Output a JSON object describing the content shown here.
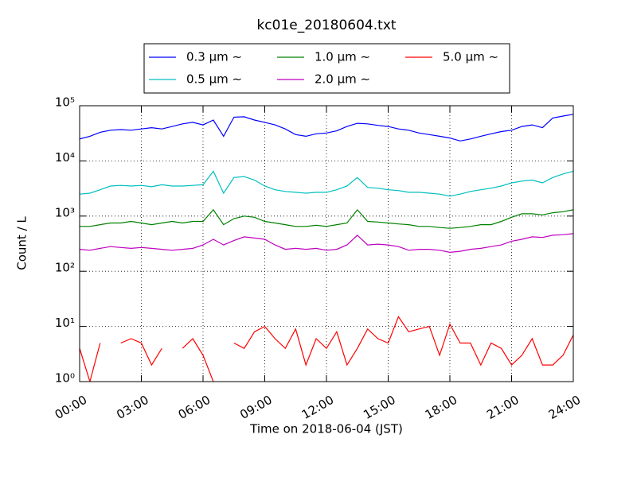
{
  "chart_data": {
    "type": "line",
    "title": "kc01e_20180604.txt",
    "xlabel": "Time on 2018-06-04 (JST)",
    "ylabel": "Count / L",
    "x": [
      0,
      0.5,
      1,
      1.5,
      2,
      2.5,
      3,
      3.5,
      4,
      4.5,
      5,
      5.5,
      6,
      6.5,
      7,
      7.5,
      8,
      8.5,
      9,
      9.5,
      10,
      10.5,
      11,
      11.5,
      12,
      12.5,
      13,
      13.5,
      14,
      14.5,
      15,
      15.5,
      16,
      16.5,
      17,
      17.5,
      18,
      18.5,
      19,
      19.5,
      20,
      20.5,
      21,
      21.5,
      22,
      22.5,
      23,
      23.5,
      24
    ],
    "xlim": [
      0,
      24
    ],
    "xticks": [
      {
        "value": 0,
        "label": "00:00"
      },
      {
        "value": 3,
        "label": "03:00"
      },
      {
        "value": 6,
        "label": "06:00"
      },
      {
        "value": 9,
        "label": "09:00"
      },
      {
        "value": 12,
        "label": "12:00"
      },
      {
        "value": 15,
        "label": "15:00"
      },
      {
        "value": 18,
        "label": "18:00"
      },
      {
        "value": 21,
        "label": "21:00"
      },
      {
        "value": 24,
        "label": "24:00"
      }
    ],
    "ylim": [
      1,
      100000
    ],
    "log_y": true,
    "grid": true,
    "yticks": [
      {
        "value": 1,
        "label": "10⁰"
      },
      {
        "value": 10,
        "label": "10¹"
      },
      {
        "value": 100,
        "label": "10²"
      },
      {
        "value": 1000,
        "label": "10³"
      },
      {
        "value": 10000,
        "label": "10⁴"
      },
      {
        "value": 100000,
        "label": "10⁵"
      }
    ],
    "legend_position": "top",
    "legend_columns": 3,
    "series": [
      {
        "name": "0.3 μm ∼",
        "color": "#0000ff",
        "values": [
          25000,
          28000,
          33000,
          36000,
          37000,
          36000,
          38000,
          40000,
          38000,
          42000,
          47000,
          50000,
          45000,
          55000,
          28000,
          62000,
          63000,
          55000,
          50000,
          45000,
          38000,
          30000,
          28000,
          31000,
          32000,
          35000,
          42000,
          48000,
          47000,
          44000,
          42000,
          38000,
          36000,
          32000,
          30000,
          28000,
          26000,
          23000,
          25000,
          28000,
          31000,
          34000,
          36000,
          42000,
          45000,
          40000,
          60000,
          65000,
          70000
        ]
      },
      {
        "name": "0.5 μm ∼",
        "color": "#00bfbf",
        "values": [
          2500,
          2600,
          3000,
          3500,
          3600,
          3500,
          3600,
          3400,
          3700,
          3500,
          3500,
          3600,
          3700,
          6500,
          2600,
          5000,
          5200,
          4500,
          3500,
          3000,
          2800,
          2700,
          2600,
          2700,
          2700,
          3000,
          3500,
          5000,
          3300,
          3200,
          3000,
          2900,
          2700,
          2700,
          2600,
          2500,
          2300,
          2500,
          2800,
          3000,
          3200,
          3500,
          4000,
          4300,
          4500,
          4000,
          5000,
          5800,
          6500
        ]
      },
      {
        "name": "1.0 μm ∼",
        "color": "#008000",
        "values": [
          650,
          650,
          700,
          750,
          750,
          800,
          750,
          700,
          750,
          800,
          750,
          800,
          800,
          1300,
          700,
          900,
          1000,
          950,
          800,
          750,
          700,
          650,
          650,
          680,
          650,
          700,
          750,
          1300,
          800,
          780,
          750,
          720,
          700,
          650,
          650,
          620,
          600,
          620,
          650,
          700,
          700,
          800,
          950,
          1100,
          1100,
          1050,
          1150,
          1200,
          1300
        ]
      },
      {
        "name": "2.0 μm ∼",
        "color": "#bf00bf",
        "values": [
          250,
          240,
          260,
          280,
          270,
          260,
          270,
          260,
          250,
          240,
          250,
          260,
          300,
          380,
          300,
          360,
          420,
          400,
          380,
          300,
          250,
          260,
          250,
          260,
          240,
          250,
          300,
          450,
          300,
          310,
          300,
          280,
          240,
          250,
          250,
          240,
          220,
          230,
          250,
          260,
          280,
          300,
          350,
          380,
          420,
          410,
          450,
          460,
          480
        ]
      },
      {
        "name": "5.0 μm ∼",
        "color": "#ff0000",
        "values": [
          4,
          1,
          5,
          null,
          5,
          6,
          5,
          2,
          4,
          null,
          4,
          6,
          3,
          1,
          null,
          5,
          4,
          8,
          10,
          6,
          4,
          9,
          2,
          6,
          4,
          8,
          2,
          4,
          9,
          6,
          5,
          15,
          8,
          9,
          10,
          3,
          11,
          5,
          5,
          2,
          5,
          4,
          2,
          3,
          6,
          2,
          2,
          3,
          7
        ]
      }
    ]
  }
}
